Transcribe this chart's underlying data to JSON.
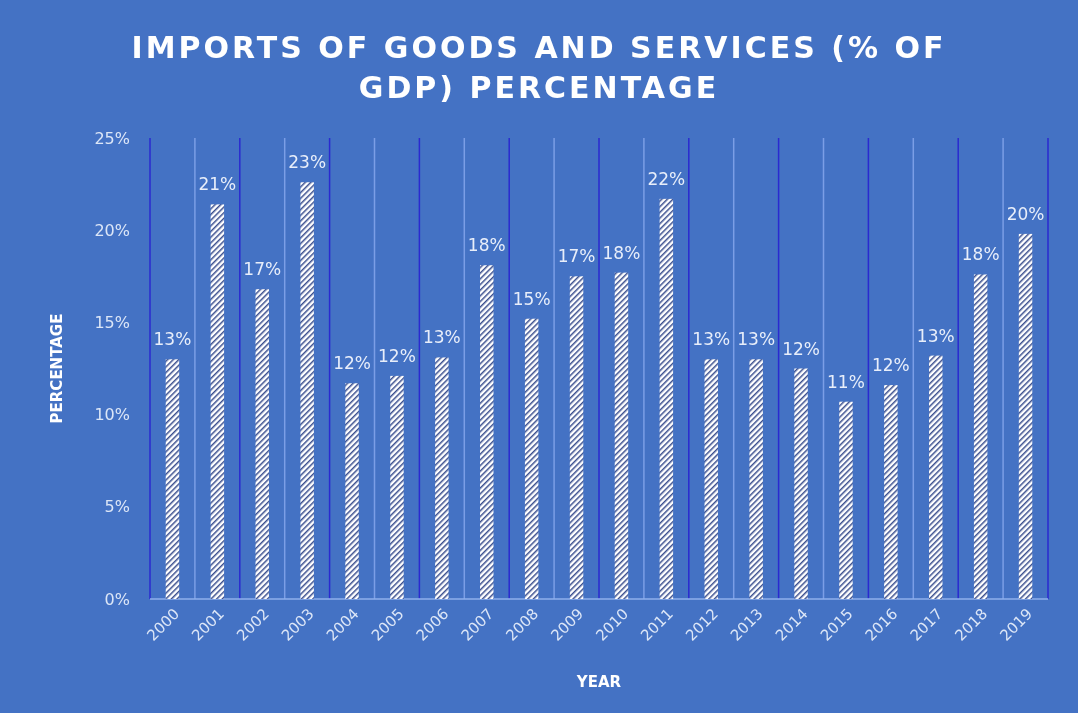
{
  "chart_data": {
    "type": "bar",
    "title": "IMPORTS OF GOODS AND SERVICES (% OF GDP) PERCENTAGE",
    "xlabel": "YEAR",
    "ylabel": "PERCENTAGE",
    "categories": [
      "2000",
      "2001",
      "2002",
      "2003",
      "2004",
      "2005",
      "2006",
      "2007",
      "2008",
      "2009",
      "2010",
      "2011",
      "2012",
      "2013",
      "2014",
      "2015",
      "2016",
      "2017",
      "2018",
      "2019"
    ],
    "values": [
      13.0,
      21.4,
      16.8,
      22.6,
      11.7,
      12.1,
      13.1,
      18.1,
      15.2,
      17.5,
      17.7,
      21.7,
      13.0,
      13.0,
      12.5,
      10.7,
      11.6,
      13.2,
      17.6,
      19.8
    ],
    "value_labels": [
      "13%",
      "21%",
      "17%",
      "23%",
      "12%",
      "12%",
      "13%",
      "18%",
      "15%",
      "17%",
      "18%",
      "22%",
      "13%",
      "13%",
      "12%",
      "11%",
      "12%",
      "13%",
      "18%",
      "20%"
    ],
    "color": "#ffffff",
    "ylim": [
      0,
      25
    ],
    "yticks": [
      {
        "value": 0,
        "label": "0%"
      },
      {
        "value": 5,
        "label": "5%"
      },
      {
        "value": 10,
        "label": "10%"
      },
      {
        "value": 15,
        "label": "15%"
      },
      {
        "value": 20,
        "label": "20%"
      },
      {
        "value": 25,
        "label": "25%"
      }
    ],
    "grid": "x"
  }
}
